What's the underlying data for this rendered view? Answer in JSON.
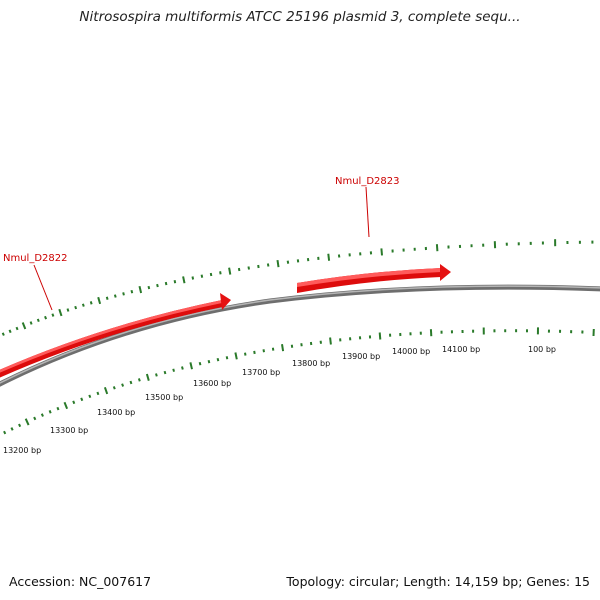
{
  "title": "Nitrosospira multiformis ATCC 25196 plasmid 3, complete sequ...",
  "footer": {
    "accession": "Accession: NC_007617",
    "summary": "Topology: circular; Length: 14,159 bp; Genes: 15"
  },
  "genes": [
    {
      "name": "Nmul_D2822",
      "strand": "+"
    },
    {
      "name": "Nmul_D2823",
      "strand": "+"
    }
  ],
  "scale_labels": [
    "13200 bp",
    "13300 bp",
    "13400 bp",
    "13500 bp",
    "13600 bp",
    "13700 bp",
    "13800 bp",
    "13900 bp",
    "14000 bp",
    "14100 bp",
    "100 bp"
  ],
  "colors": {
    "backbone": "#8c8c8c",
    "gene": "#ee1111",
    "gene_label": "#cc0000",
    "ticks": "#2a7a2a"
  }
}
